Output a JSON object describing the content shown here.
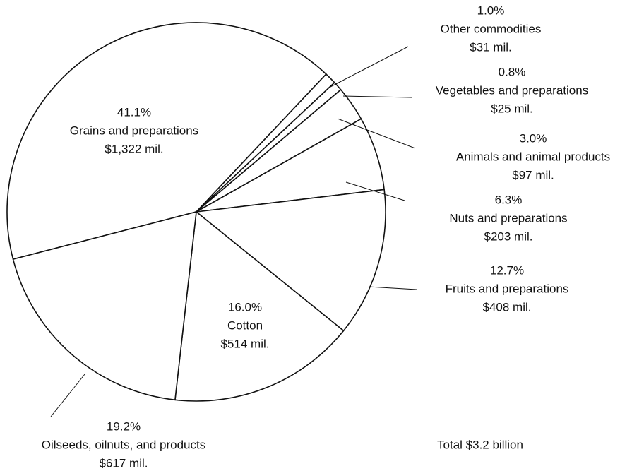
{
  "chart_data": {
    "type": "pie",
    "categories": [
      "Grains and preparations",
      "Other commodities",
      "Vegetables and preparations",
      "Animals and animal products",
      "Nuts and preparations",
      "Fruits and preparations",
      "Cotton",
      "Oilseeds, oilnuts, and products"
    ],
    "values": [
      41.1,
      1.0,
      0.8,
      3.0,
      6.3,
      12.7,
      16.0,
      19.2
    ],
    "value_labels": [
      "41.1%",
      "1.0%",
      "0.8%",
      "3.0%",
      "6.3%",
      "12.7%",
      "16.0%",
      "19.2%"
    ],
    "amount_labels": [
      "$1,322 mil.",
      "$31 mil.",
      "$25 mil.",
      "$97 mil.",
      "$203 mil.",
      "$408 mil.",
      "$514 mil.",
      "$617 mil."
    ],
    "color": "#ffffff",
    "note": "Total $3.2 billion"
  }
}
